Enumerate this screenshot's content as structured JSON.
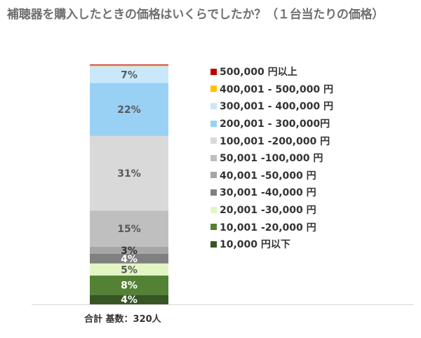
{
  "title": "補聴器を購入したときの価格はいくらでしたか？（１台当たりの価格）",
  "footer": "合計 基数：320人",
  "chart_data": {
    "type": "bar",
    "stacked": true,
    "categories": [
      ""
    ],
    "series": [
      {
        "name": "10,000 円以下",
        "value": 4,
        "label": "4%",
        "color": "#375623"
      },
      {
        "name": "10,001 -20,000 円",
        "value": 8,
        "label": "8%",
        "color": "#548235"
      },
      {
        "name": "20,001 -30,000 円",
        "value": 5,
        "label": "5%",
        "color": "#e2f6c3"
      },
      {
        "name": "30,001 -40,000 円",
        "value": 4,
        "label": "4%",
        "color": "#808080"
      },
      {
        "name": "40,001 -50,000 円",
        "value": 3,
        "label": "3%",
        "color": "#a6a6a6"
      },
      {
        "name": "50,001 -100,000 円",
        "value": 15,
        "label": "15%",
        "color": "#bfbfbf"
      },
      {
        "name": "100,001 -200,000 円",
        "value": 31,
        "label": "31%",
        "color": "#d9d9d9"
      },
      {
        "name": "200,001 - 300,000円",
        "value": 22,
        "label": "22%",
        "color": "#99d1f5"
      },
      {
        "name": "300,001 - 400,000 円",
        "value": 7,
        "label": "7%",
        "color": "#c9e8fb"
      },
      {
        "name": "400,001 - 500,000 円",
        "value": 0.4,
        "label": "",
        "color": "#ffc000"
      },
      {
        "name": "500,000 円以上",
        "value": 0.3,
        "label": "",
        "color": "#c00000"
      }
    ],
    "ylim": [
      0,
      100
    ],
    "legend_position": "right",
    "grid": false
  }
}
